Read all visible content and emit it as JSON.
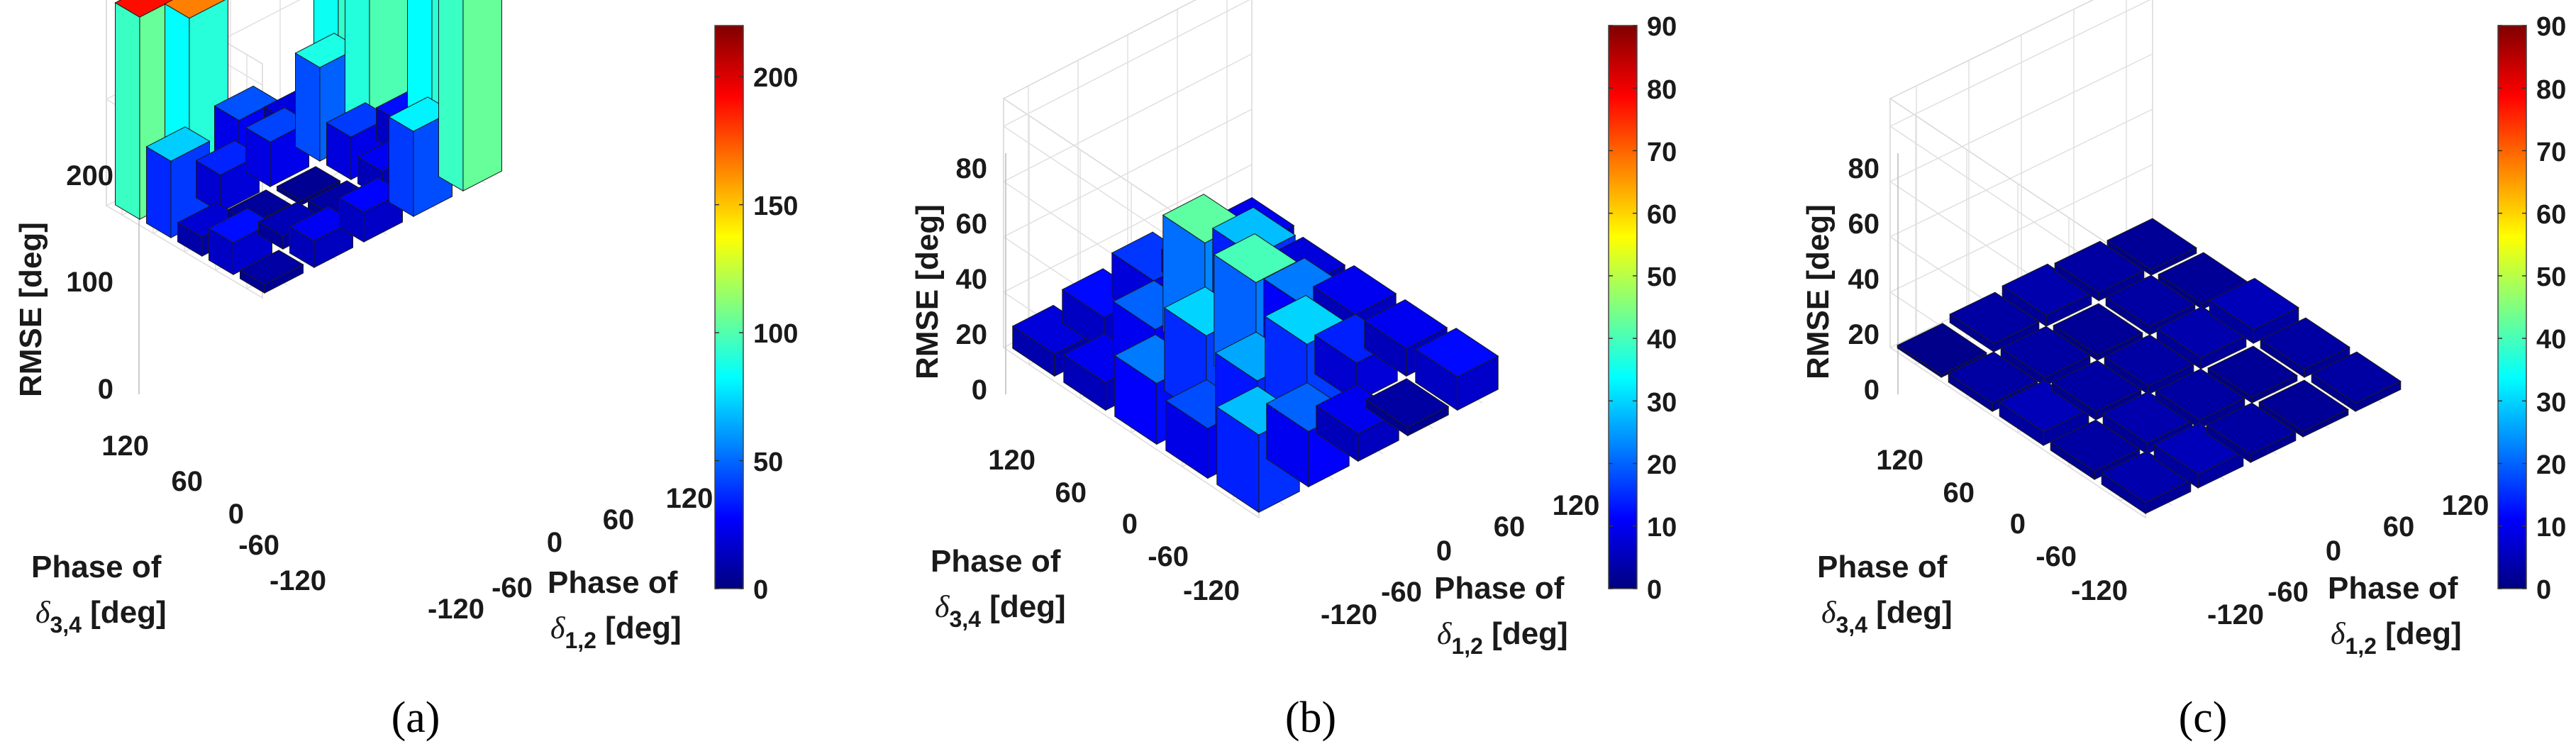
{
  "chart_data": [
    {
      "type": "bar3d",
      "caption": "(a)",
      "zlabel": "RMSE [deg]",
      "xlabel": [
        "Phase of",
        "δ",
        "1,2",
        " [deg]"
      ],
      "ylabel": [
        "Phase of",
        "δ",
        "3,4",
        " [deg]"
      ],
      "x_ticks": [
        "-120",
        "-60",
        "0",
        "60",
        "120"
      ],
      "y_ticks": [
        "-120",
        "-60",
        "0",
        "60",
        "120"
      ],
      "z_ticks": [
        "0",
        "100",
        "200"
      ],
      "z_tick_values": [
        0,
        100,
        200
      ],
      "zlim": [
        0,
        220
      ],
      "colorbar_ticks": [
        "0",
        "50",
        "100",
        "150",
        "200"
      ],
      "colorbar_tick_values": [
        0,
        50,
        100,
        150,
        200
      ],
      "clim": [
        0,
        220
      ],
      "grid": true,
      "phases": [
        -120,
        -60,
        0,
        60,
        120
      ],
      "values": [
        [
          8,
          25,
          28,
          80,
          190
        ],
        [
          30,
          12,
          8,
          25,
          165
        ],
        [
          18,
          6,
          4,
          40,
          30
        ],
        [
          72,
          35,
          42,
          88,
          180
        ],
        [
          190,
          165,
          45,
          20,
          170
        ]
      ]
    },
    {
      "type": "bar3d",
      "caption": "(b)",
      "zlabel": "RMSE [deg]",
      "xlabel": [
        "Phase of",
        "δ",
        "1,2",
        " [deg]"
      ],
      "ylabel": [
        "Phase of",
        "δ",
        "3,4",
        " [deg]"
      ],
      "x_ticks": [
        "-120",
        "-60",
        "0",
        "60",
        "120"
      ],
      "y_ticks": [
        "-120",
        "-60",
        "0",
        "60",
        "120"
      ],
      "z_ticks": [
        "0",
        "20",
        "40",
        "60",
        "80"
      ],
      "z_tick_values": [
        0,
        20,
        40,
        60,
        80
      ],
      "zlim": [
        0,
        90
      ],
      "colorbar_ticks": [
        "0",
        "10",
        "20",
        "30",
        "40",
        "50",
        "60",
        "70",
        "80",
        "90"
      ],
      "colorbar_tick_values": [
        0,
        10,
        20,
        30,
        40,
        50,
        60,
        70,
        80,
        90
      ],
      "clim": [
        0,
        90
      ],
      "grid": true,
      "phases": [
        -120,
        -60,
        0,
        60,
        120
      ],
      "values": [
        [
          28,
          20,
          10,
          3,
          12
        ],
        [
          18,
          26,
          30,
          14,
          10
        ],
        [
          22,
          30,
          40,
          22,
          10
        ],
        [
          10,
          20,
          42,
          28,
          8
        ],
        [
          8,
          12,
          16,
          8,
          10
        ]
      ]
    },
    {
      "type": "bar3d",
      "caption": "(c)",
      "zlabel": "RMSE [deg]",
      "xlabel": [
        "Phase of",
        "δ",
        "1,2",
        " [deg]"
      ],
      "ylabel": [
        "Phase of",
        "δ",
        "3,4",
        " [deg]"
      ],
      "x_ticks": [
        "-120",
        "-60",
        "0",
        "60",
        "120"
      ],
      "y_ticks": [
        "-120",
        "-60",
        "0",
        "60",
        "120"
      ],
      "z_ticks": [
        "0",
        "20",
        "40",
        "60",
        "80"
      ],
      "z_tick_values": [
        0,
        20,
        40,
        60,
        80
      ],
      "zlim": [
        0,
        90
      ],
      "colorbar_ticks": [
        "0",
        "10",
        "20",
        "30",
        "40",
        "50",
        "60",
        "70",
        "80",
        "90"
      ],
      "colorbar_tick_values": [
        0,
        10,
        20,
        30,
        40,
        50,
        60,
        70,
        80,
        90
      ],
      "clim": [
        0,
        90
      ],
      "grid": true,
      "phases": [
        -120,
        -60,
        0,
        60,
        120
      ],
      "values": [
        [
          4,
          5,
          3,
          2,
          3
        ],
        [
          3,
          4,
          3,
          2,
          3
        ],
        [
          5,
          3,
          3,
          4,
          5
        ],
        [
          3,
          3,
          2,
          3,
          2
        ],
        [
          1,
          3,
          4,
          3,
          2
        ]
      ]
    }
  ]
}
